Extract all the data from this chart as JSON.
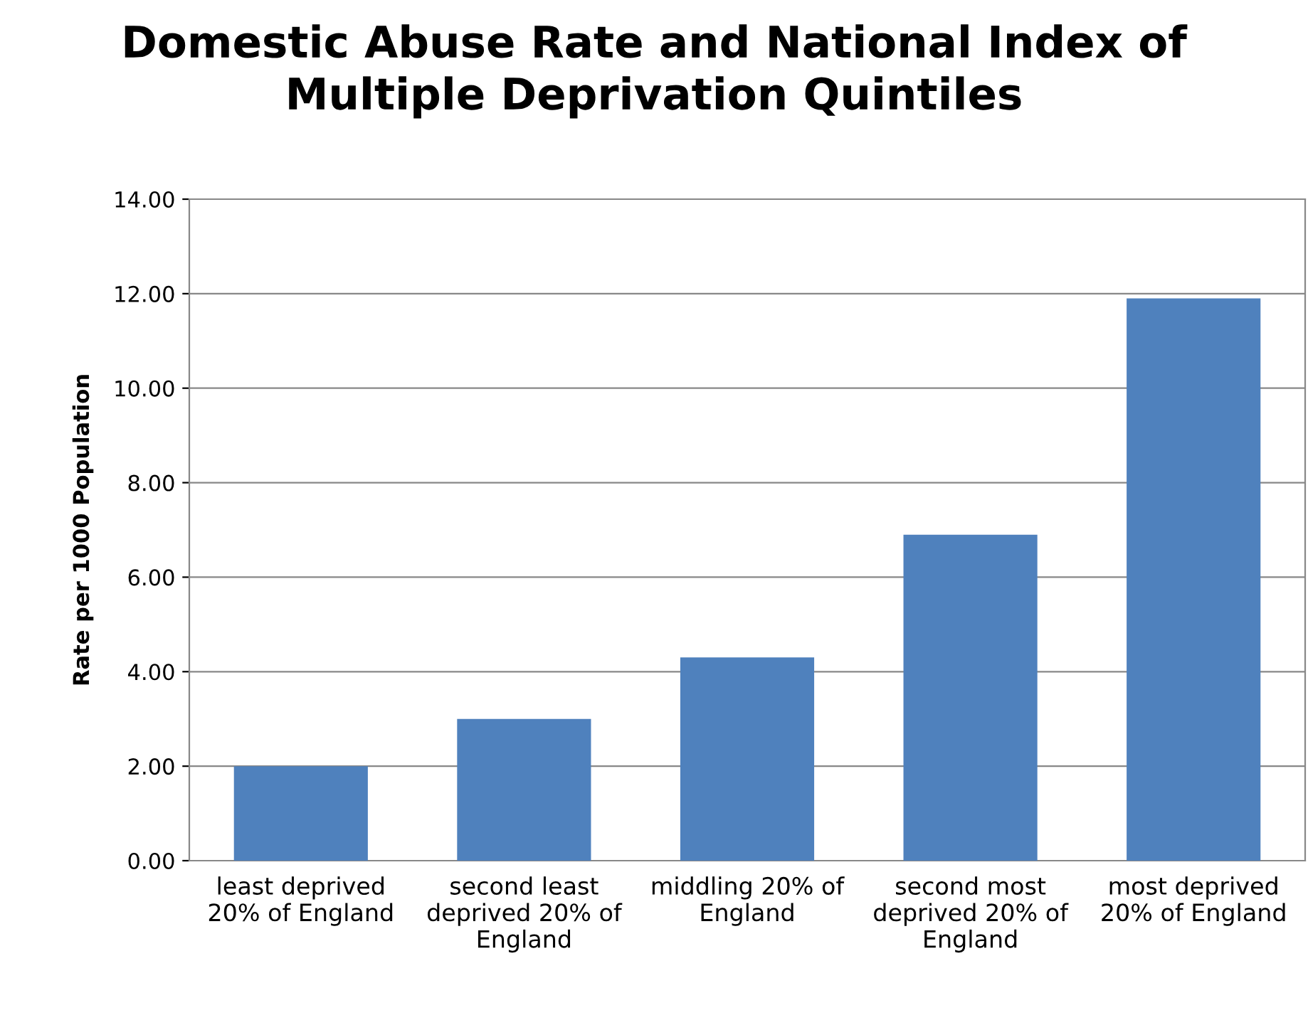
{
  "chart_data": {
    "type": "bar",
    "title": "Domestic Abuse Rate and National Index of Multiple Deprivation Quintiles",
    "ylabel": "Rate per 1000 Population",
    "categories": [
      "least deprived 20% of England",
      "second least deprived 20% of England",
      "middling 20% of England",
      "second most deprived 20% of England",
      "most deprived 20% of England"
    ],
    "values": [
      2.0,
      3.0,
      4.3,
      6.9,
      11.9
    ],
    "color": "#4f81bd",
    "ylim": [
      0,
      14
    ],
    "yticks": [
      {
        "value": 0,
        "label": "0.00"
      },
      {
        "value": 2,
        "label": "2.00"
      },
      {
        "value": 4,
        "label": "4.00"
      },
      {
        "value": 6,
        "label": "6.00"
      },
      {
        "value": 8,
        "label": "8.00"
      },
      {
        "value": 10,
        "label": "10.00"
      },
      {
        "value": 12,
        "label": "12.00"
      },
      {
        "value": 14,
        "label": "14.00"
      }
    ],
    "grid": "y"
  }
}
